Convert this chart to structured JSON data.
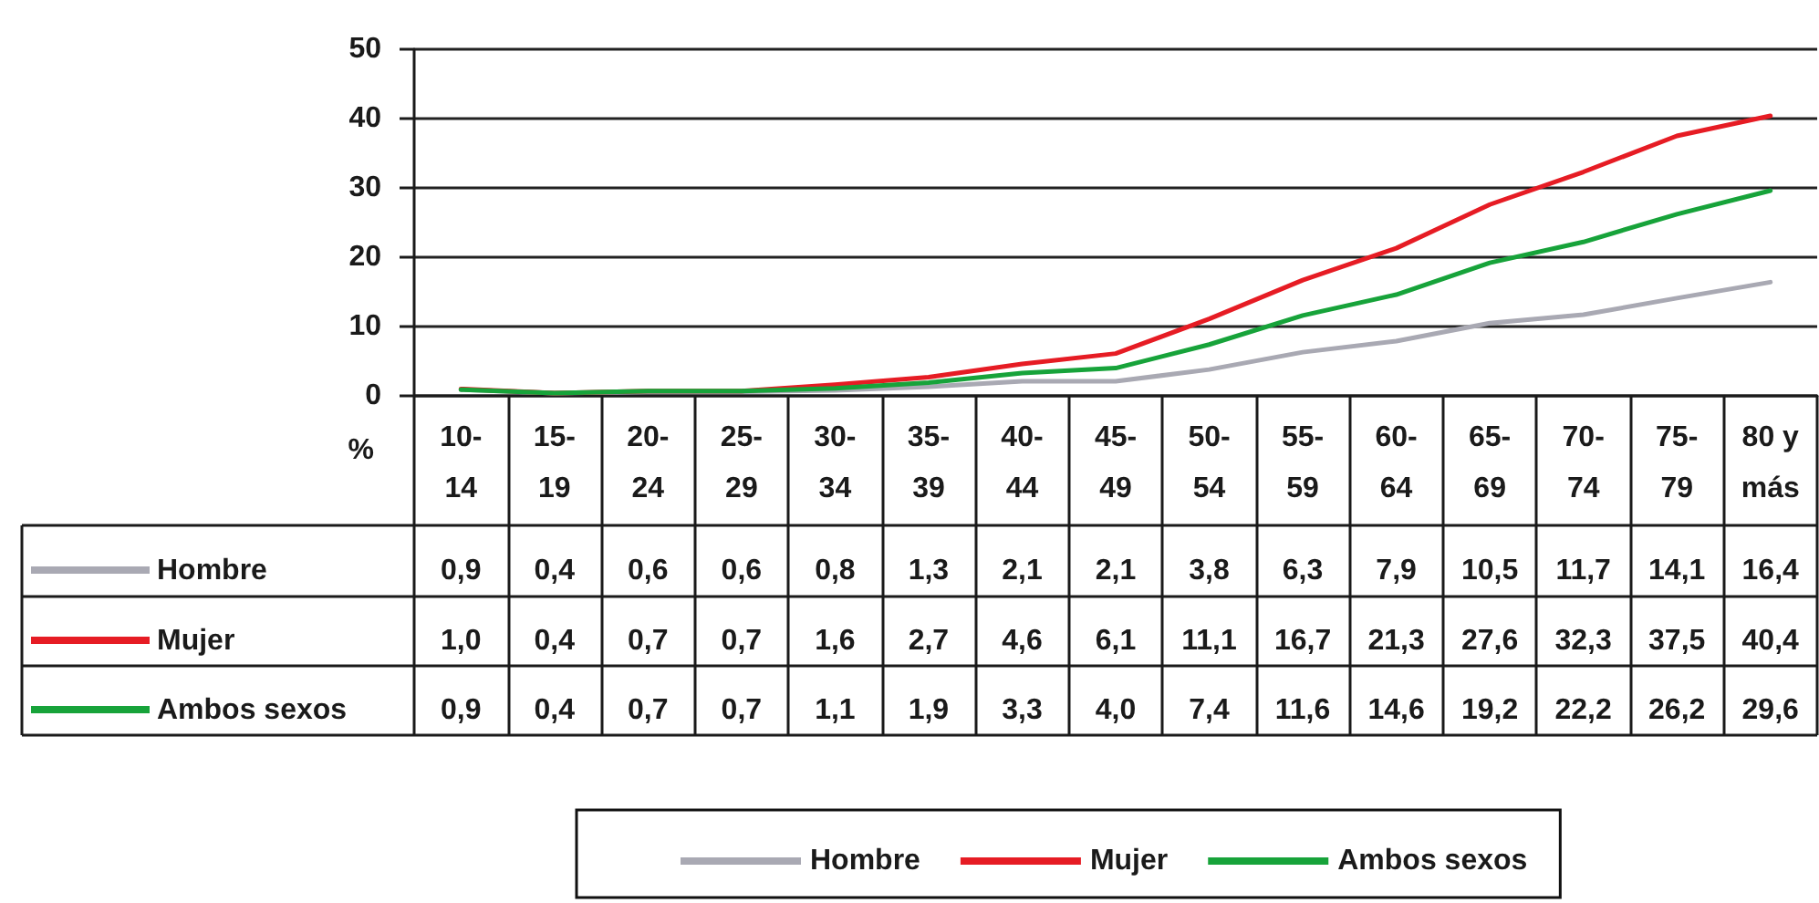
{
  "chart_data": {
    "type": "line",
    "ylabel": "%",
    "categories": [
      "10-\n14",
      "15-\n19",
      "20-\n24",
      "25-\n29",
      "30-\n34",
      "35-\n39",
      "40-\n44",
      "45-\n49",
      "50-\n54",
      "55-\n59",
      "60-\n64",
      "65-\n69",
      "70-\n74",
      "75-\n79",
      "80 y\nmás"
    ],
    "series": [
      {
        "name": "Hombre",
        "color": "#a9a9b3",
        "values": [
          0.9,
          0.4,
          0.6,
          0.6,
          0.8,
          1.3,
          2.1,
          2.1,
          3.8,
          6.3,
          7.9,
          10.5,
          11.7,
          14.1,
          16.4
        ],
        "value_labels": [
          "0,9",
          "0,4",
          "0,6",
          "0,6",
          "0,8",
          "1,3",
          "2,1",
          "2,1",
          "3,8",
          "6,3",
          "7,9",
          "10,5",
          "11,7",
          "14,1",
          "16,4"
        ]
      },
      {
        "name": "Mujer",
        "color": "#e61c24",
        "values": [
          1.0,
          0.4,
          0.7,
          0.7,
          1.6,
          2.7,
          4.6,
          6.1,
          11.1,
          16.7,
          21.3,
          27.6,
          32.3,
          37.5,
          40.4
        ],
        "value_labels": [
          "1,0",
          "0,4",
          "0,7",
          "0,7",
          "1,6",
          "2,7",
          "4,6",
          "6,1",
          "11,1",
          "16,7",
          "21,3",
          "27,6",
          "32,3",
          "37,5",
          "40,4"
        ]
      },
      {
        "name": "Ambos sexos",
        "color": "#17a33a",
        "values": [
          0.9,
          0.4,
          0.7,
          0.7,
          1.1,
          1.9,
          3.3,
          4.0,
          7.4,
          11.6,
          14.6,
          19.2,
          22.2,
          26.2,
          29.6
        ],
        "value_labels": [
          "0,9",
          "0,4",
          "0,7",
          "0,7",
          "1,1",
          "1,9",
          "3,3",
          "4,0",
          "7,4",
          "11,6",
          "14,6",
          "19,2",
          "22,2",
          "26,2",
          "29,6"
        ]
      }
    ],
    "ylim": [
      0,
      50
    ],
    "yticks": [
      0,
      10,
      20,
      30,
      40,
      50
    ],
    "grid": "y",
    "legend": "bottom",
    "marker": "none",
    "line_style": "solid"
  }
}
